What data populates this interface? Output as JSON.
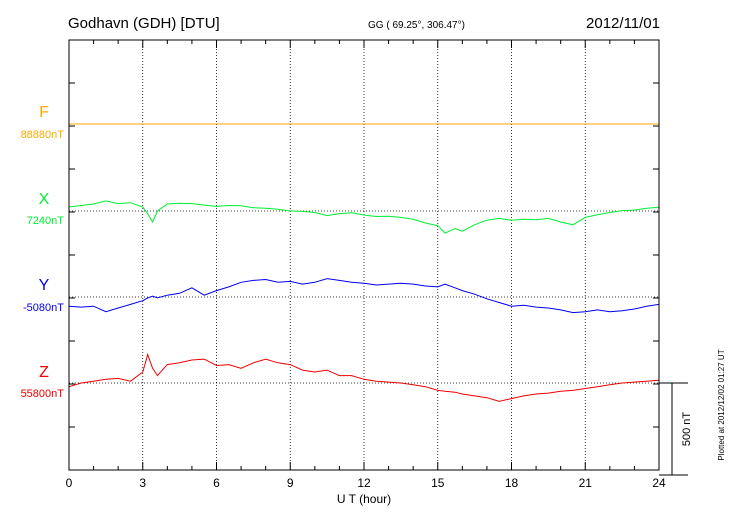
{
  "header": {
    "station": "Godhavn (GDH)  [DTU]",
    "coords": "GG ( 69.25°, 306.47°)",
    "date": "2012/11/01"
  },
  "footer": {
    "plotted": "Plotted at 2012/12/02 01:27  UT"
  },
  "chart_data": {
    "type": "line",
    "title": "",
    "xlabel": "U T (hour)",
    "ylabel": "",
    "xlim": [
      0,
      24
    ],
    "x_ticks": [
      0,
      3,
      6,
      9,
      12,
      15,
      18,
      21,
      24
    ],
    "x_tick_labels": [
      "0",
      "3",
      "6",
      "9",
      "12",
      "15",
      "18",
      "21",
      "24"
    ],
    "grid": "dotted",
    "scale_bar": {
      "value": 500,
      "label": "500 nT"
    },
    "units": "nT",
    "x": [
      0,
      0.5,
      1,
      1.5,
      2,
      2.5,
      3,
      3.2,
      3.4,
      3.6,
      4,
      4.5,
      5,
      5.5,
      6,
      6.5,
      7,
      7.5,
      8,
      8.5,
      9,
      9.5,
      10,
      10.5,
      11,
      11.5,
      12,
      12.5,
      13,
      13.5,
      14,
      14.5,
      15,
      15.3,
      15.7,
      16,
      16.5,
      17,
      17.5,
      18,
      18.5,
      19,
      19.5,
      20,
      20.5,
      21,
      21.5,
      22,
      22.5,
      23,
      23.5,
      24
    ],
    "series": [
      {
        "name": "F",
        "baseline_label": "88880nT",
        "color": "#ffaa00",
        "baseline": 88880,
        "values": [
          88880,
          88880,
          88880,
          88880,
          88880,
          88880,
          88880,
          88880,
          88880,
          88880,
          88880,
          88880,
          88880,
          88880,
          88880,
          88880,
          88880,
          88880,
          88880,
          88880,
          88880,
          88880,
          88880,
          88880,
          88880,
          88880,
          88880,
          88880,
          88880,
          88880,
          88880,
          88880,
          88880,
          88880,
          88880,
          88880,
          88880,
          88880,
          88880,
          88880,
          88880,
          88880,
          88880,
          88880,
          88880,
          88880,
          88880,
          88880,
          88880,
          88880,
          88880,
          88880
        ]
      },
      {
        "name": "X",
        "baseline_label": "7240nT",
        "color": "#00ee33",
        "baseline": 7240,
        "values": [
          7262,
          7270,
          7278,
          7295,
          7280,
          7285,
          7262,
          7225,
          7180,
          7240,
          7278,
          7282,
          7280,
          7272,
          7265,
          7270,
          7268,
          7258,
          7255,
          7250,
          7240,
          7238,
          7232,
          7215,
          7226,
          7230,
          7218,
          7210,
          7212,
          7205,
          7195,
          7175,
          7160,
          7120,
          7145,
          7130,
          7165,
          7190,
          7200,
          7190,
          7195,
          7192,
          7200,
          7180,
          7165,
          7205,
          7220,
          7232,
          7242,
          7245,
          7255,
          7260
        ]
      },
      {
        "name": "Y",
        "baseline_label": "-5080nT",
        "color": "#0000ee",
        "baseline": -5080,
        "values": [
          -5130,
          -5135,
          -5130,
          -5160,
          -5140,
          -5120,
          -5100,
          -5085,
          -5075,
          -5085,
          -5070,
          -5060,
          -5030,
          -5070,
          -5045,
          -5025,
          -5000,
          -4990,
          -4985,
          -5000,
          -4995,
          -5010,
          -5000,
          -4980,
          -4990,
          -5000,
          -5005,
          -5015,
          -5010,
          -5005,
          -5010,
          -5020,
          -5025,
          -5010,
          -5030,
          -5045,
          -5065,
          -5090,
          -5110,
          -5130,
          -5125,
          -5135,
          -5140,
          -5150,
          -5165,
          -5160,
          -5150,
          -5160,
          -5155,
          -5145,
          -5130,
          -5120
        ]
      },
      {
        "name": "Z",
        "baseline_label": "55800nT",
        "color": "#ee0000",
        "baseline": 55800,
        "values": [
          55780,
          55800,
          55810,
          55820,
          55825,
          55810,
          55860,
          55955,
          55880,
          55840,
          55900,
          55910,
          55925,
          55930,
          55895,
          55900,
          55880,
          55910,
          55930,
          55910,
          55900,
          55870,
          55860,
          55870,
          55840,
          55840,
          55820,
          55810,
          55805,
          55800,
          55790,
          55780,
          55760,
          55755,
          55750,
          55740,
          55730,
          55720,
          55700,
          55715,
          55730,
          55740,
          55745,
          55755,
          55760,
          55770,
          55780,
          55790,
          55800,
          55805,
          55810,
          55815
        ]
      }
    ]
  }
}
